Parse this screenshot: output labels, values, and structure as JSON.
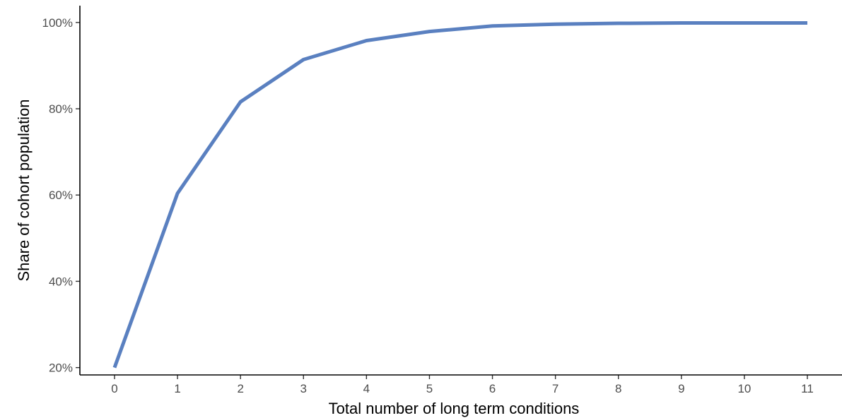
{
  "chart_data": {
    "type": "line",
    "title": "",
    "xlabel": "Total number of long term conditions",
    "ylabel": "Share of cohort population",
    "x_tick_labels": [
      "0",
      "1",
      "2",
      "3",
      "4",
      "5",
      "6",
      "7",
      "8",
      "9",
      "10",
      "11"
    ],
    "y_tick_labels": [
      "20%",
      "40%",
      "60%",
      "80%",
      "100%"
    ],
    "y_tick_values": [
      20,
      40,
      60,
      80,
      100
    ],
    "xlim": [
      -0.55,
      11.55
    ],
    "ylim": [
      18.3,
      103.9
    ],
    "grid": false,
    "legend": "none",
    "series": [
      {
        "color": "#5a80c0",
        "x": [
          0,
          1,
          2,
          3,
          4,
          5,
          6,
          7,
          8,
          9,
          10,
          11
        ],
        "y": [
          20.0,
          60.4,
          81.6,
          91.4,
          95.8,
          97.9,
          99.2,
          99.6,
          99.8,
          99.9,
          99.9,
          99.9
        ]
      }
    ]
  }
}
